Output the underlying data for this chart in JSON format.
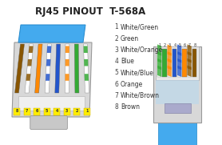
{
  "title": "RJ45 PINOUT  T-568A",
  "bg_color": "#ffffff",
  "pins": [
    {
      "num": 1,
      "label": "White/Green",
      "wire_color": "#ffffff",
      "stripe_color": "#33aa33"
    },
    {
      "num": 2,
      "label": "Green",
      "wire_color": "#33aa33",
      "stripe_color": null
    },
    {
      "num": 3,
      "label": "White/Orange",
      "wire_color": "#ffffff",
      "stripe_color": "#ff8800"
    },
    {
      "num": 4,
      "label": "Blue",
      "wire_color": "#2255cc",
      "stripe_color": null
    },
    {
      "num": 5,
      "label": "White/Blue",
      "wire_color": "#ffffff",
      "stripe_color": "#2255cc"
    },
    {
      "num": 6,
      "label": "Orange",
      "wire_color": "#ff8800",
      "stripe_color": null
    },
    {
      "num": 7,
      "label": "White/Brown",
      "wire_color": "#ffffff",
      "stripe_color": "#885500"
    },
    {
      "num": 8,
      "label": "Brown",
      "wire_color": "#885500",
      "stripe_color": null
    }
  ],
  "body_color": "#d8d8d8",
  "body_edge": "#999999",
  "cable_color": "#44aaee",
  "cable_edge": "#2288cc",
  "latch_color": "#aaaacc",
  "latch_edge": "#8888aa",
  "wire_bg_color": "#eeeeee",
  "label_color": "#333333",
  "title_color": "#222222"
}
